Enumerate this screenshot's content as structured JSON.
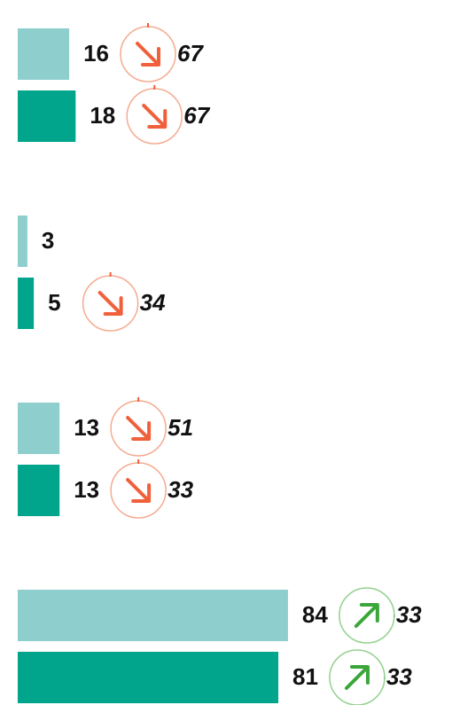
{
  "chart_data": {
    "type": "bar",
    "orientation": "horizontal",
    "colors": [
      "#8ecfce",
      "#00a58b"
    ],
    "groups": [
      {
        "bars": [
          {
            "value": 16,
            "change": {
              "direction": "down",
              "value": 67
            }
          },
          {
            "value": 18,
            "change": {
              "direction": "down",
              "value": 67
            }
          }
        ]
      },
      {
        "bars": [
          {
            "value": 3
          },
          {
            "value": 5,
            "change": {
              "direction": "down",
              "value": 34
            }
          }
        ]
      },
      {
        "bars": [
          {
            "value": 13,
            "change": {
              "direction": "down",
              "value": 51
            }
          },
          {
            "value": 13,
            "change": {
              "direction": "down",
              "value": 33
            }
          }
        ]
      },
      {
        "bars": [
          {
            "value": 84,
            "change": {
              "direction": "up",
              "value": 33
            }
          },
          {
            "value": 81,
            "change": {
              "direction": "up",
              "value": 33
            }
          }
        ]
      }
    ]
  }
}
